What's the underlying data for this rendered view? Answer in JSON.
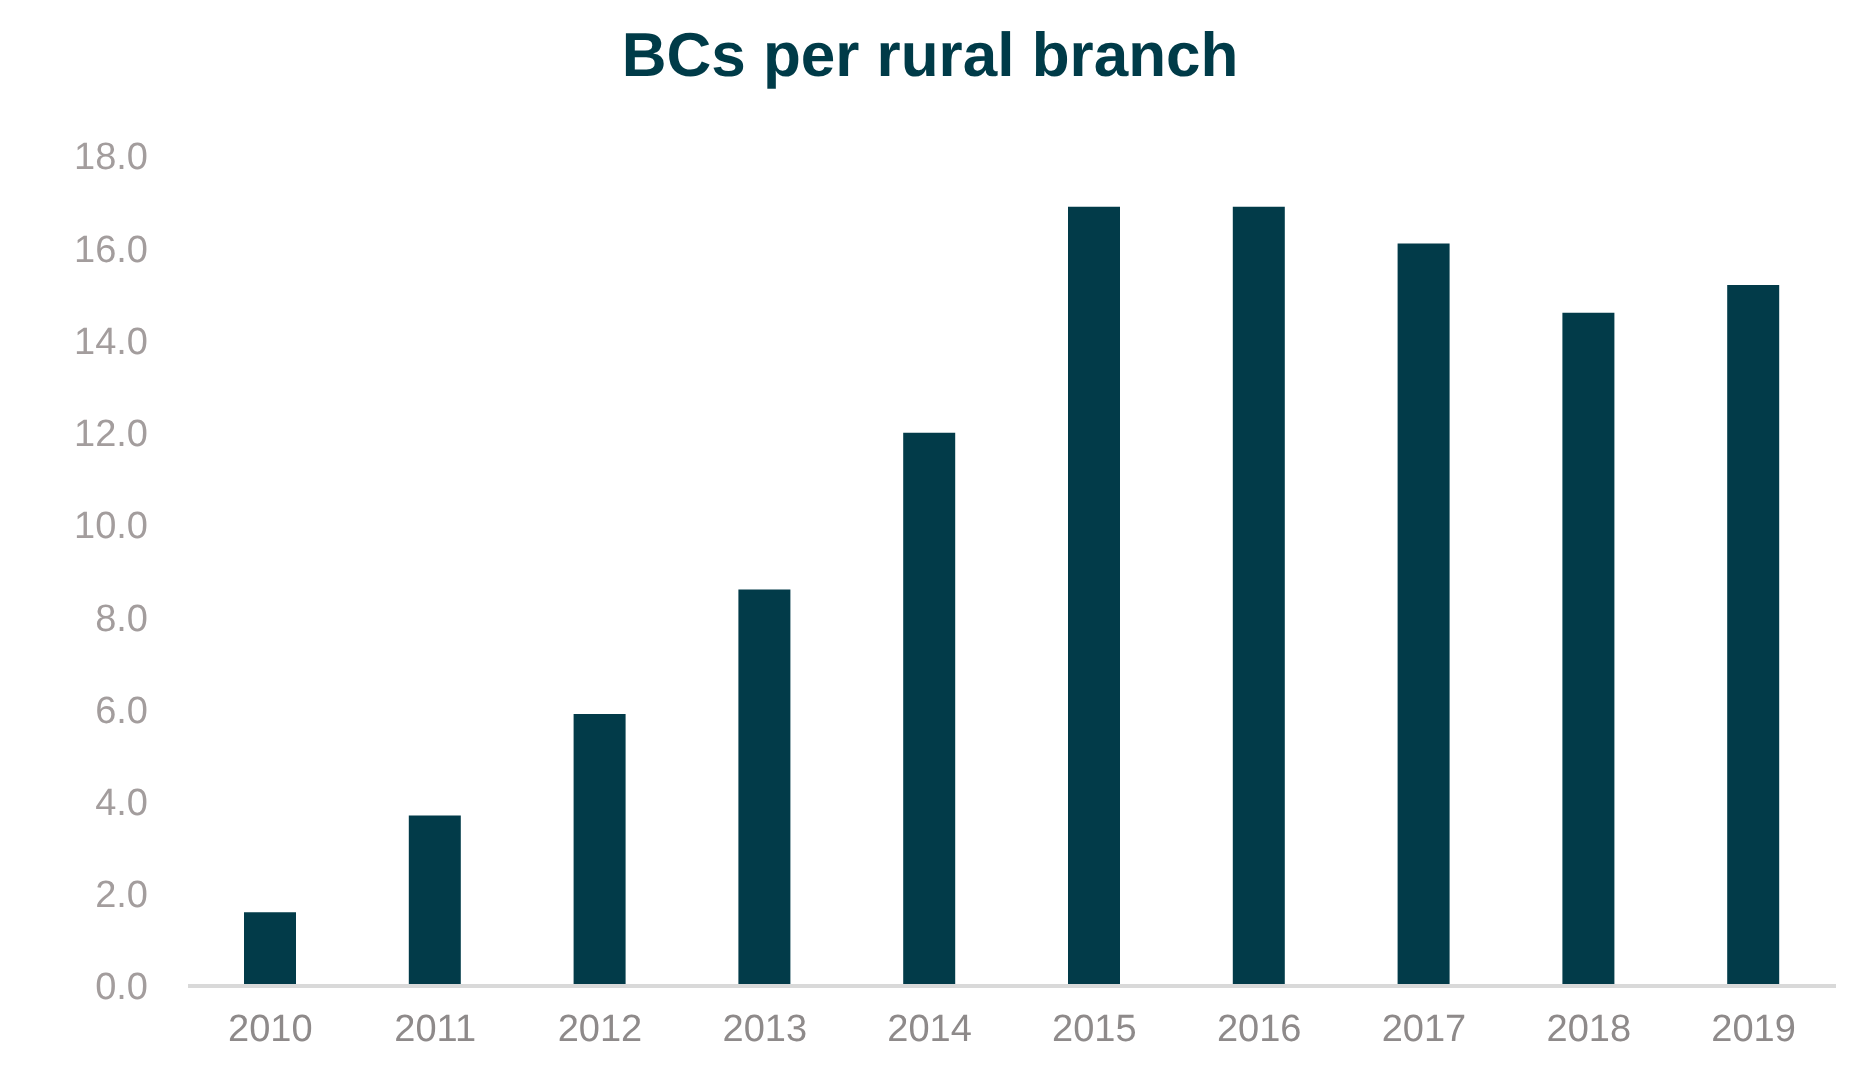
{
  "chart_data": {
    "type": "bar",
    "title": "BCs per rural branch",
    "categories": [
      "2010",
      "2011",
      "2012",
      "2013",
      "2014",
      "2015",
      "2016",
      "2017",
      "2018",
      "2019"
    ],
    "values": [
      1.6,
      3.7,
      5.9,
      8.6,
      12.0,
      16.9,
      16.9,
      16.1,
      14.6,
      15.2
    ],
    "color": "#023b49",
    "ylim": [
      0,
      18
    ],
    "yticks": [
      {
        "value": 0,
        "label": "0.0"
      },
      {
        "value": 2,
        "label": "2.0"
      },
      {
        "value": 4,
        "label": "4.0"
      },
      {
        "value": 6,
        "label": "6.0"
      },
      {
        "value": 8,
        "label": "8.0"
      },
      {
        "value": 10,
        "label": "10.0"
      },
      {
        "value": 12,
        "label": "12.0"
      },
      {
        "value": 14,
        "label": "14.0"
      },
      {
        "value": 16,
        "label": "16.0"
      },
      {
        "value": 18,
        "label": "18.0"
      }
    ],
    "grid": false
  }
}
